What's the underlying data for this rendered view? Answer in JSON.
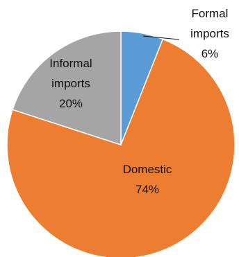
{
  "chart_data": {
    "type": "pie",
    "title": "",
    "start": "12 o'clock",
    "direction": "clockwise",
    "slices": [
      {
        "category": "Formal imports",
        "label_lines": [
          "Formal",
          "imports"
        ],
        "percent_label": "6%",
        "value": 6,
        "color": "#5B9BD5"
      },
      {
        "category": "Domestic",
        "label_lines": [
          "Domestic"
        ],
        "percent_label": "74%",
        "value": 74,
        "color": "#ED7D31"
      },
      {
        "category": "Informal imports",
        "label_lines": [
          "Informal",
          "imports"
        ],
        "percent_label": "20%",
        "value": 20,
        "color": "#A5A5A5"
      }
    ],
    "legend": "none",
    "data_labels": "category and percent"
  }
}
